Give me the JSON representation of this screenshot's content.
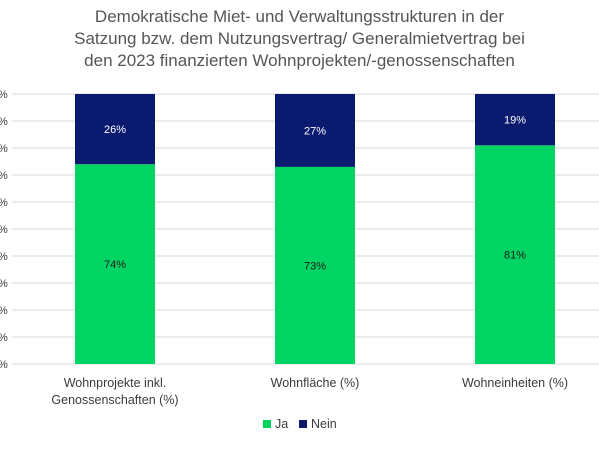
{
  "chart_data": {
    "type": "bar",
    "stacked": true,
    "title_lines": [
      "Demokratische Miet- und Verwaltungsstrukturen in der",
      "Satzung bzw. dem Nutzungsvertrag/ Generalmietvertrag bei",
      "den 2023 finanzierten Wohnprojekten/-genossenschaften"
    ],
    "categories": [
      [
        "Wohnprojekte inkl.",
        "Genossenschaften (%)"
      ],
      [
        "Wohnfläche (%)"
      ],
      [
        "Wohneinheiten (%)"
      ]
    ],
    "series": [
      {
        "name": "Ja",
        "values": [
          74,
          73,
          81
        ],
        "labels": [
          "74%",
          "73%",
          "81%"
        ],
        "color": "#00d563",
        "label_color": "#1a1a1a"
      },
      {
        "name": "Nein",
        "values": [
          26,
          27,
          19
        ],
        "labels": [
          "26%",
          "27%",
          "19%"
        ],
        "color": "#0a1a6e",
        "label_color": "#ffffff"
      }
    ],
    "y_tick_labels": [
      "%",
      "%",
      "%",
      "%",
      "%",
      "%",
      "%",
      "%",
      "%",
      "%",
      "%"
    ],
    "ylim": [
      0,
      100
    ],
    "grid": true,
    "grid_color": "#d9d9d9",
    "legend_position": "bottom"
  }
}
